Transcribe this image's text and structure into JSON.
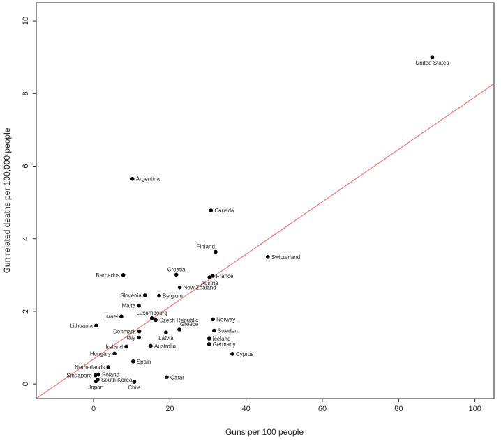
{
  "chart_data": {
    "type": "scatter",
    "title": "",
    "xlabel": "Guns per 100 people",
    "ylabel": "Gun related deaths per 100,000 people",
    "xlim": [
      -15,
      105
    ],
    "ylim": [
      -0.4,
      10.5
    ],
    "xticks": [
      "0",
      "20",
      "40",
      "60",
      "80",
      "100"
    ],
    "yticks": [
      "0",
      "2",
      "4",
      "6",
      "8",
      "10"
    ],
    "grid": false,
    "point_color": "#000000",
    "fit_line": {
      "color": "#f08080",
      "x": [
        -15,
        105
      ],
      "y": [
        -0.45,
        8.27
      ]
    },
    "points": [
      {
        "label": "United States",
        "x": 88.8,
        "y": 9.0,
        "pos": "below-left"
      },
      {
        "label": "Argentina",
        "x": 10.2,
        "y": 5.65,
        "pos": "right"
      },
      {
        "label": "Canada",
        "x": 30.8,
        "y": 4.78,
        "pos": "right"
      },
      {
        "label": "Finland",
        "x": 32.0,
        "y": 3.64,
        "pos": "above-left"
      },
      {
        "label": "Switzerland",
        "x": 45.7,
        "y": 3.5,
        "pos": "right"
      },
      {
        "label": "Barbados",
        "x": 7.8,
        "y": 3.0,
        "pos": "left"
      },
      {
        "label": "Croatia",
        "x": 21.7,
        "y": 3.01,
        "pos": "above"
      },
      {
        "label": "France",
        "x": 31.2,
        "y": 2.98,
        "pos": "right"
      },
      {
        "label": "Austria",
        "x": 30.4,
        "y": 2.94,
        "pos": "below"
      },
      {
        "label": "New Zealand",
        "x": 22.6,
        "y": 2.66,
        "pos": "right"
      },
      {
        "label": "Slovenia",
        "x": 13.5,
        "y": 2.44,
        "pos": "left"
      },
      {
        "label": "Belgium",
        "x": 17.2,
        "y": 2.43,
        "pos": "right"
      },
      {
        "label": "Malta",
        "x": 11.9,
        "y": 2.16,
        "pos": "left"
      },
      {
        "label": "Israel",
        "x": 7.3,
        "y": 1.86,
        "pos": "left"
      },
      {
        "label": "Luxembourg",
        "x": 15.3,
        "y": 1.81,
        "pos": "above"
      },
      {
        "label": "Czech Republic",
        "x": 16.3,
        "y": 1.76,
        "pos": "right"
      },
      {
        "label": "Norway",
        "x": 31.3,
        "y": 1.78,
        "pos": "right"
      },
      {
        "label": "Lithuania",
        "x": 0.7,
        "y": 1.61,
        "pos": "left"
      },
      {
        "label": "Greece",
        "x": 22.5,
        "y": 1.5,
        "pos": "above-right"
      },
      {
        "label": "Sweden",
        "x": 31.6,
        "y": 1.47,
        "pos": "right"
      },
      {
        "label": "Denmark",
        "x": 12.0,
        "y": 1.45,
        "pos": "left"
      },
      {
        "label": "Latvia",
        "x": 19.0,
        "y": 1.42,
        "pos": "below"
      },
      {
        "label": "Italy",
        "x": 11.9,
        "y": 1.28,
        "pos": "left"
      },
      {
        "label": "Iceland",
        "x": 30.3,
        "y": 1.25,
        "pos": "right"
      },
      {
        "label": "Germany",
        "x": 30.3,
        "y": 1.1,
        "pos": "right"
      },
      {
        "label": "Ireland",
        "x": 8.6,
        "y": 1.03,
        "pos": "left"
      },
      {
        "label": "Australia",
        "x": 15.0,
        "y": 1.05,
        "pos": "right"
      },
      {
        "label": "Hungary",
        "x": 5.5,
        "y": 0.84,
        "pos": "left"
      },
      {
        "label": "Cyprus",
        "x": 36.4,
        "y": 0.83,
        "pos": "right"
      },
      {
        "label": "Spain",
        "x": 10.4,
        "y": 0.62,
        "pos": "right"
      },
      {
        "label": "Netherlands",
        "x": 3.9,
        "y": 0.46,
        "pos": "left"
      },
      {
        "label": "Singapore",
        "x": 0.5,
        "y": 0.24,
        "pos": "left"
      },
      {
        "label": "Poland",
        "x": 1.3,
        "y": 0.26,
        "pos": "right"
      },
      {
        "label": "South Korea",
        "x": 1.1,
        "y": 0.12,
        "pos": "right"
      },
      {
        "label": "Qatar",
        "x": 19.2,
        "y": 0.19,
        "pos": "right"
      },
      {
        "label": "Japan",
        "x": 0.6,
        "y": 0.07,
        "pos": "below"
      },
      {
        "label": "Chile",
        "x": 10.7,
        "y": 0.06,
        "pos": "below"
      }
    ]
  }
}
